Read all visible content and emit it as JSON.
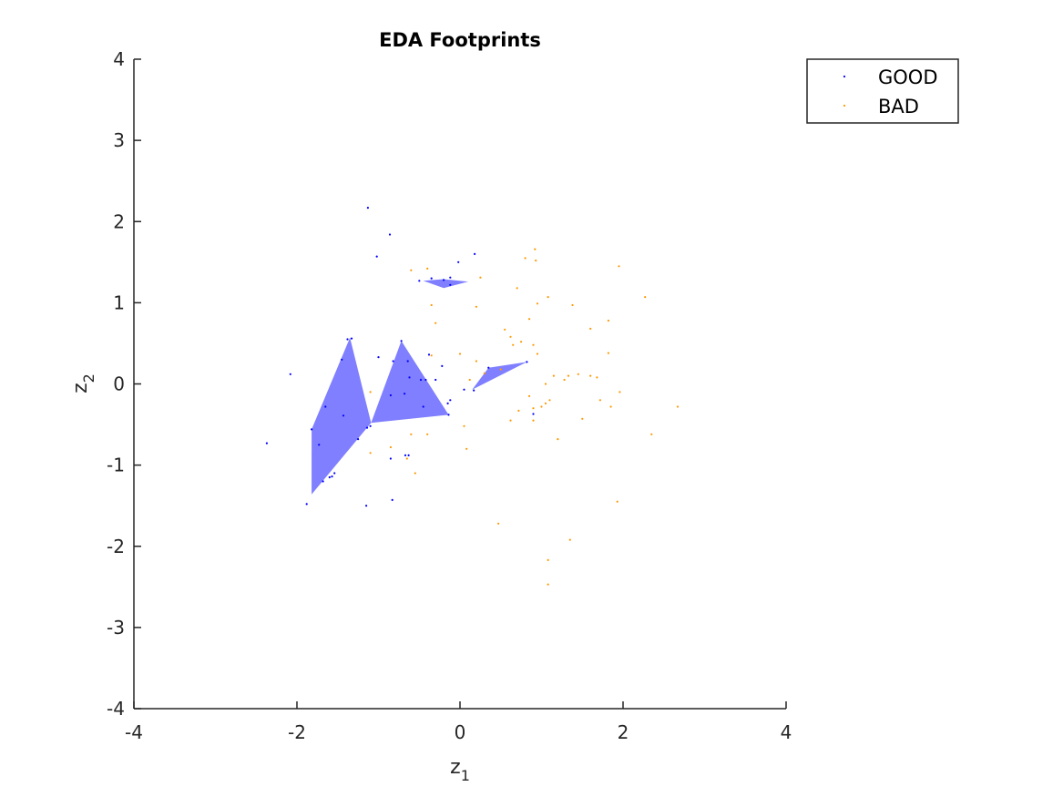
{
  "chart_data": {
    "type": "scatter",
    "title": "EDA Footprints",
    "xlabel": "z",
    "xlabel_sub": "1",
    "ylabel": "z",
    "ylabel_sub": "2",
    "xlim": [
      -4,
      4
    ],
    "ylim": [
      -4,
      4
    ],
    "xticks": [
      -4,
      -2,
      0,
      2,
      4
    ],
    "yticks": [
      -4,
      -3,
      -2,
      -1,
      0,
      1,
      2,
      3,
      4
    ],
    "xtick_labels": [
      "-4",
      "-2",
      "0",
      "2",
      "4"
    ],
    "ytick_labels": [
      "-4",
      "-3",
      "-2",
      "-1",
      "0",
      "1",
      "2",
      "3",
      "4"
    ],
    "grid": false,
    "legend_position": "top-right",
    "footprint_color": "#7f7fff",
    "footprints": [
      [
        [
          -1.35,
          0.57
        ],
        [
          -1.09,
          -0.48
        ],
        [
          -1.82,
          -1.36
        ],
        [
          -1.82,
          -0.56
        ]
      ],
      [
        [
          -0.72,
          0.53
        ],
        [
          -0.14,
          -0.38
        ],
        [
          -1.09,
          -0.48
        ]
      ],
      [
        [
          -0.45,
          1.27
        ],
        [
          -0.2,
          1.29
        ],
        [
          0.1,
          1.26
        ],
        [
          -0.2,
          1.18
        ]
      ],
      [
        [
          0.15,
          -0.07
        ],
        [
          0.82,
          0.27
        ],
        [
          0.35,
          0.2
        ]
      ]
    ],
    "series": [
      {
        "name": "GOOD",
        "color": "#0000ff",
        "points": [
          [
            -1.13,
            2.17
          ],
          [
            -0.86,
            1.84
          ],
          [
            -1.02,
            1.57
          ],
          [
            0.18,
            1.6
          ],
          [
            -0.02,
            1.5
          ],
          [
            -0.12,
            1.31
          ],
          [
            -0.2,
            1.28
          ],
          [
            -0.35,
            1.3
          ],
          [
            -0.5,
            1.27
          ],
          [
            -0.12,
            1.22
          ],
          [
            -2.08,
            0.12
          ],
          [
            -1.38,
            0.55
          ],
          [
            -1.33,
            0.56
          ],
          [
            -1.45,
            0.3
          ],
          [
            -1.0,
            0.33
          ],
          [
            -0.72,
            0.53
          ],
          [
            -0.82,
            0.28
          ],
          [
            -0.64,
            0.28
          ],
          [
            -0.38,
            0.36
          ],
          [
            -0.22,
            0.22
          ],
          [
            -0.62,
            0.08
          ],
          [
            -0.48,
            0.05
          ],
          [
            -0.42,
            0.05
          ],
          [
            -0.3,
            0.05
          ],
          [
            -0.68,
            -0.12
          ],
          [
            -0.85,
            -0.14
          ],
          [
            -0.15,
            -0.24
          ],
          [
            -0.12,
            -0.2
          ],
          [
            -0.45,
            -0.28
          ],
          [
            -1.65,
            -0.28
          ],
          [
            -1.43,
            -0.39
          ],
          [
            -1.1,
            -0.52
          ],
          [
            -1.14,
            -0.54
          ],
          [
            -1.82,
            -0.56
          ],
          [
            -1.25,
            -0.68
          ],
          [
            -1.73,
            -0.75
          ],
          [
            -2.37,
            -0.73
          ],
          [
            -0.85,
            -0.92
          ],
          [
            -0.67,
            -0.88
          ],
          [
            -0.63,
            -0.88
          ],
          [
            -1.54,
            -1.1
          ],
          [
            -1.57,
            -1.14
          ],
          [
            -1.6,
            -1.15
          ],
          [
            -1.68,
            -1.2
          ],
          [
            -1.88,
            -1.48
          ],
          [
            -1.15,
            -1.5
          ],
          [
            -0.83,
            -1.43
          ],
          [
            0.17,
            -0.08
          ],
          [
            0.35,
            0.2
          ],
          [
            0.82,
            0.27
          ],
          [
            0.05,
            -0.07
          ],
          [
            0.9,
            -0.37
          ],
          [
            -0.14,
            -0.38
          ]
        ]
      },
      {
        "name": "BAD",
        "color": "#ff9900",
        "points": [
          [
            0.92,
            1.66
          ],
          [
            0.93,
            1.52
          ],
          [
            0.8,
            1.55
          ],
          [
            -0.6,
            1.4
          ],
          [
            -0.4,
            1.42
          ],
          [
            0.25,
            1.31
          ],
          [
            0.7,
            1.18
          ],
          [
            1.08,
            1.07
          ],
          [
            0.95,
            0.99
          ],
          [
            1.38,
            0.97
          ],
          [
            -0.35,
            0.97
          ],
          [
            0.2,
            0.95
          ],
          [
            -0.3,
            0.75
          ],
          [
            0.85,
            0.8
          ],
          [
            0.55,
            0.67
          ],
          [
            1.6,
            0.68
          ],
          [
            1.82,
            0.78
          ],
          [
            2.27,
            1.07
          ],
          [
            1.95,
            1.45
          ],
          [
            0.62,
            0.58
          ],
          [
            0.75,
            0.52
          ],
          [
            0.65,
            0.48
          ],
          [
            0.9,
            0.48
          ],
          [
            1.82,
            0.38
          ],
          [
            0.0,
            0.37
          ],
          [
            0.95,
            0.37
          ],
          [
            -0.35,
            0.35
          ],
          [
            0.2,
            0.28
          ],
          [
            0.5,
            0.18
          ],
          [
            0.3,
            0.13
          ],
          [
            1.15,
            0.1
          ],
          [
            1.45,
            0.12
          ],
          [
            1.33,
            0.1
          ],
          [
            1.6,
            0.1
          ],
          [
            1.68,
            0.08
          ],
          [
            1.28,
            0.05
          ],
          [
            0.12,
            0.05
          ],
          [
            1.05,
            0.0
          ],
          [
            -1.1,
            -0.1
          ],
          [
            1.96,
            -0.1
          ],
          [
            0.85,
            -0.15
          ],
          [
            1.1,
            -0.2
          ],
          [
            1.72,
            -0.2
          ],
          [
            1.05,
            -0.24
          ],
          [
            0.9,
            -0.3
          ],
          [
            1.0,
            -0.28
          ],
          [
            1.85,
            -0.28
          ],
          [
            2.67,
            -0.28
          ],
          [
            0.72,
            -0.33
          ],
          [
            0.62,
            -0.45
          ],
          [
            0.9,
            -0.45
          ],
          [
            1.5,
            -0.43
          ],
          [
            0.05,
            -0.52
          ],
          [
            -0.4,
            -0.62
          ],
          [
            -0.6,
            -0.62
          ],
          [
            1.2,
            -0.68
          ],
          [
            2.35,
            -0.62
          ],
          [
            -0.85,
            -0.78
          ],
          [
            0.08,
            -0.8
          ],
          [
            -1.1,
            -0.85
          ],
          [
            -0.65,
            -0.92
          ],
          [
            -0.55,
            -1.1
          ],
          [
            0.47,
            -1.72
          ],
          [
            1.93,
            -1.45
          ],
          [
            1.35,
            -1.92
          ],
          [
            1.08,
            -2.17
          ],
          [
            1.08,
            -2.47
          ]
        ]
      }
    ]
  }
}
